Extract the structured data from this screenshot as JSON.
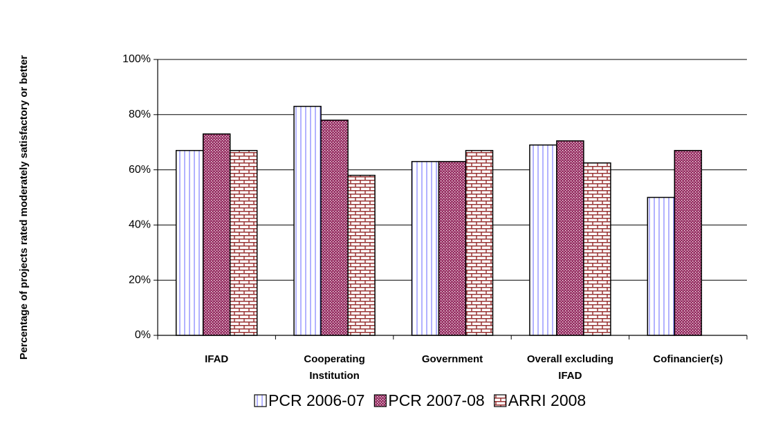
{
  "chart_data": {
    "type": "bar",
    "y_label": "Percentage of projects rated moderately satisfactory or better",
    "categories": [
      "IFAD",
      "Cooperating Institution",
      "Government",
      "Overall excluding IFAD",
      "Cofinancier(s)"
    ],
    "series": [
      {
        "name": "PCR 2006-07",
        "color": "#8080ff",
        "values": [
          67,
          83,
          63,
          69,
          50
        ]
      },
      {
        "name": "PCR 2007-08",
        "color": "#993366",
        "values": [
          73,
          78,
          63,
          70.5,
          67
        ]
      },
      {
        "name": "ARRI 2008",
        "color": "#993333",
        "values": [
          67,
          58,
          67,
          62.5,
          null
        ]
      }
    ],
    "ylim": [
      0,
      100
    ],
    "yticks": [
      {
        "value": 0,
        "label": "0%"
      },
      {
        "value": 20,
        "label": "20%"
      },
      {
        "value": 40,
        "label": "40%"
      },
      {
        "value": 60,
        "label": "60%"
      },
      {
        "value": 80,
        "label": "80%"
      },
      {
        "value": 100,
        "label": "100%"
      }
    ],
    "grid": true,
    "legend": "bottom"
  }
}
